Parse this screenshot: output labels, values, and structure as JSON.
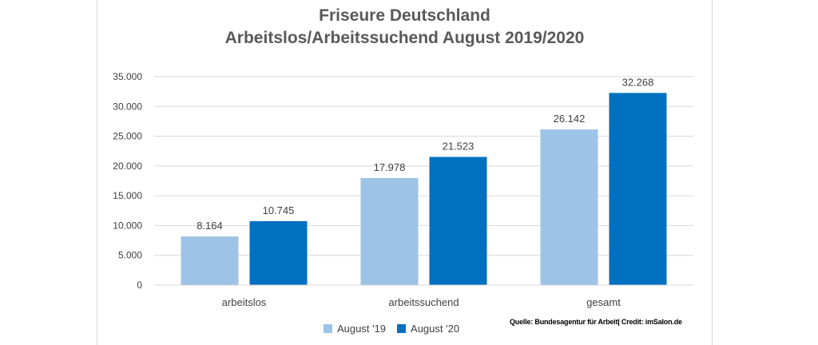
{
  "chart_data": {
    "type": "bar",
    "title": "Friseure Deutschland",
    "subtitle": "Arbeitslos/Arbeitssuchend  August 2019/2020",
    "categories": [
      "arbeitslos",
      "arbeitssuchend",
      "gesamt"
    ],
    "series": [
      {
        "name": "August '19",
        "values": [
          8164,
          17978,
          26142
        ],
        "labels": [
          "8.164",
          "17.978",
          "26.142"
        ],
        "color": "#9dc3e6"
      },
      {
        "name": "August '20",
        "values": [
          10745,
          21523,
          32268
        ],
        "labels": [
          "10.745",
          "21.523",
          "32.268"
        ],
        "color": "#0070c0"
      }
    ],
    "ylim": [
      0,
      35000
    ],
    "yticks": [
      0,
      5000,
      10000,
      15000,
      20000,
      25000,
      30000,
      35000
    ],
    "ytick_labels": [
      "0",
      "5.000",
      "10.000",
      "15.000",
      "20.000",
      "25.000",
      "30.000",
      "35.000"
    ],
    "grid": true,
    "legend_position": "bottom",
    "source_note": "Quelle: Bundesagentur für Arbeit| Credit: imSalon.de",
    "colors": {
      "gridline": "#d9d9d9",
      "text": "#404040",
      "title": "#595959"
    }
  }
}
